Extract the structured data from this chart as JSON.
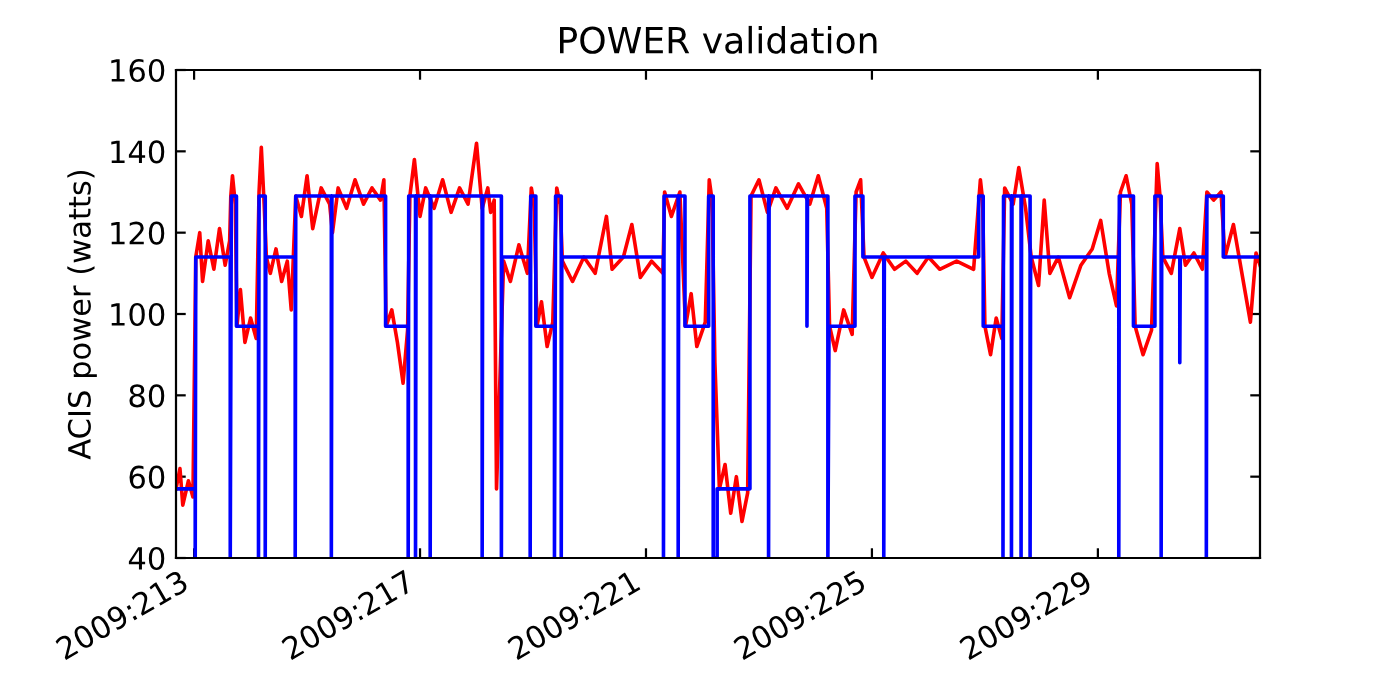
{
  "chart_data": {
    "type": "line",
    "title": "POWER validation",
    "ylabel": "ACIS power (watts)",
    "xlim": [
      "2009-07-31T16:19",
      "2009-08-19T20:53"
    ],
    "ylim": [
      40,
      160
    ],
    "xticks": [
      {
        "value": "2009-08-01",
        "label": "2009:213"
      },
      {
        "value": "2009-08-05",
        "label": "2009:217"
      },
      {
        "value": "2009-08-09",
        "label": "2009:221"
      },
      {
        "value": "2009-08-13",
        "label": "2009:225"
      },
      {
        "value": "2009-08-17",
        "label": "2009:229"
      }
    ],
    "yticks": [
      40,
      60,
      80,
      100,
      120,
      140,
      160
    ],
    "line_style": "solid",
    "marker": "none",
    "series": [
      {
        "color": "#ff0000",
        "x": [
          "2009-07-31T16:19",
          "2009-07-31T18:00",
          "2009-07-31T19:12",
          "2009-07-31T21:36",
          "2009-07-31T23:31",
          "2009-08-01T00:43",
          "2009-08-01T02:24",
          "2009-08-01T03:36",
          "2009-08-01T06:00",
          "2009-08-01T08:24",
          "2009-08-01T10:48",
          "2009-08-01T13:12",
          "2009-08-01T15:07",
          "2009-08-01T15:36",
          "2009-08-01T16:19",
          "2009-08-01T17:31",
          "2009-08-01T18:14",
          "2009-08-01T19:41",
          "2009-08-01T21:36",
          "2009-08-02T00:00",
          "2009-08-02T02:24",
          "2009-08-02T03:36",
          "2009-08-02T04:34",
          "2009-08-02T05:46",
          "2009-08-02T06:43",
          "2009-08-02T08:24",
          "2009-08-02T10:48",
          "2009-08-02T13:12",
          "2009-08-02T15:36",
          "2009-08-02T17:17",
          "2009-08-02T19:12",
          "2009-08-02T21:36",
          "2009-08-03T00:00",
          "2009-08-03T02:24",
          "2009-08-03T06:00",
          "2009-08-03T09:36",
          "2009-08-03T10:48",
          "2009-08-03T13:12",
          "2009-08-03T16:48",
          "2009-08-03T20:24",
          "2009-08-04T00:00",
          "2009-08-04T03:36",
          "2009-08-04T07:12",
          "2009-08-04T08:38",
          "2009-08-04T09:36",
          "2009-08-04T12:00",
          "2009-08-04T14:24",
          "2009-08-04T16:48",
          "2009-08-04T18:43",
          "2009-08-04T19:41",
          "2009-08-04T21:36",
          "2009-08-05T00:00",
          "2009-08-05T02:24",
          "2009-08-05T06:00",
          "2009-08-05T09:36",
          "2009-08-05T13:12",
          "2009-08-05T16:48",
          "2009-08-05T20:24",
          "2009-08-06T00:00",
          "2009-08-06T02:24",
          "2009-08-06T04:48",
          "2009-08-06T06:00",
          "2009-08-06T07:30",
          "2009-08-06T08:30",
          "2009-08-06T11:31",
          "2009-08-06T14:24",
          "2009-08-06T18:00",
          "2009-08-06T21:36",
          "2009-08-06T23:17",
          "2009-08-07T00:29",
          "2009-08-07T01:41",
          "2009-08-07T03:36",
          "2009-08-07T06:00",
          "2009-08-07T08:24",
          "2009-08-07T10:05",
          "2009-08-07T11:31",
          "2009-08-07T12:29",
          "2009-08-07T16:48",
          "2009-08-07T21:36",
          "2009-08-08T02:24",
          "2009-08-08T07:12",
          "2009-08-08T09:36",
          "2009-08-08T14:24",
          "2009-08-08T18:00",
          "2009-08-08T21:36",
          "2009-08-09T02:24",
          "2009-08-09T07:12",
          "2009-08-09T07:55",
          "2009-08-09T10:48",
          "2009-08-09T14:24",
          "2009-08-09T16:48",
          "2009-08-09T19:12",
          "2009-08-09T21:36",
          "2009-08-10T01:12",
          "2009-08-10T02:53",
          "2009-08-10T04:05",
          "2009-08-10T05:17",
          "2009-08-10T07:12",
          "2009-08-10T09:36",
          "2009-08-10T12:00",
          "2009-08-10T14:24",
          "2009-08-10T16:48",
          "2009-08-10T19:12",
          "2009-08-10T20:38",
          "2009-08-11T00:00",
          "2009-08-11T03:36",
          "2009-08-11T07:12",
          "2009-08-11T12:00",
          "2009-08-11T16:48",
          "2009-08-11T21:36",
          "2009-08-12T01:12",
          "2009-08-12T04:48",
          "2009-08-12T06:00",
          "2009-08-12T08:24",
          "2009-08-12T12:00",
          "2009-08-12T15:36",
          "2009-08-12T17:17",
          "2009-08-12T19:12",
          "2009-08-12T20:38",
          "2009-08-13T00:00",
          "2009-08-13T04:48",
          "2009-08-13T09:36",
          "2009-08-13T14:24",
          "2009-08-13T19:12",
          "2009-08-14T00:00",
          "2009-08-14T04:48",
          "2009-08-14T12:00",
          "2009-08-14T19:12",
          "2009-08-14T22:05",
          "2009-08-14T23:02",
          "2009-08-15T00:00",
          "2009-08-15T02:24",
          "2009-08-15T04:48",
          "2009-08-15T07:12",
          "2009-08-15T08:24",
          "2009-08-15T12:00",
          "2009-08-15T14:24",
          "2009-08-15T17:17",
          "2009-08-15T19:41",
          "2009-08-15T22:48",
          "2009-08-16T01:12",
          "2009-08-16T03:36",
          "2009-08-16T07:12",
          "2009-08-16T12:00",
          "2009-08-16T16:48",
          "2009-08-16T21:36",
          "2009-08-17T01:12",
          "2009-08-17T04:48",
          "2009-08-17T07:55",
          "2009-08-17T09:36",
          "2009-08-17T12:00",
          "2009-08-17T14:24",
          "2009-08-17T15:50",
          "2009-08-17T19:12",
          "2009-08-17T22:48",
          "2009-08-18T01:12",
          "2009-08-18T02:24",
          "2009-08-18T03:36",
          "2009-08-18T07:12",
          "2009-08-18T10:48",
          "2009-08-18T13:12",
          "2009-08-18T16:48",
          "2009-08-18T20:24",
          "2009-08-18T22:19",
          "2009-08-19T01:12",
          "2009-08-19T04:19",
          "2009-08-19T06:00",
          "2009-08-19T09:36",
          "2009-08-19T13:12",
          "2009-08-19T16:48",
          "2009-08-19T19:12",
          "2009-08-19T20:53"
        ],
        "values": [
          57,
          62,
          53,
          59,
          55,
          114,
          120,
          108,
          118,
          111,
          121,
          112,
          118,
          129,
          134,
          127,
          97,
          106,
          93,
          99,
          94,
          130,
          141,
          127,
          114,
          110,
          116,
          108,
          113,
          101,
          129,
          124,
          134,
          121,
          131,
          127,
          120,
          131,
          126,
          133,
          127,
          131,
          128,
          133,
          97,
          101,
          93,
          83,
          96,
          129,
          138,
          124,
          131,
          126,
          133,
          125,
          131,
          127,
          142,
          126,
          131,
          125,
          128,
          57,
          113,
          108,
          117,
          110,
          131,
          127,
          97,
          103,
          92,
          98,
          131,
          127,
          113,
          108,
          114,
          110,
          124,
          111,
          114,
          122,
          109,
          113,
          110,
          130,
          124,
          130,
          97,
          105,
          92,
          98,
          133,
          128,
          88,
          57,
          63,
          51,
          60,
          49,
          56,
          129,
          133,
          125,
          131,
          126,
          132,
          127,
          134,
          126,
          97,
          91,
          101,
          95,
          130,
          133,
          114,
          109,
          115,
          111,
          113,
          110,
          114,
          111,
          113,
          111,
          133,
          128,
          97,
          90,
          99,
          94,
          131,
          127,
          136,
          126,
          114,
          107,
          128,
          110,
          114,
          104,
          112,
          116,
          123,
          110,
          102,
          130,
          134,
          127,
          97,
          90,
          96,
          137,
          129,
          114,
          110,
          121,
          112,
          115,
          111,
          130,
          128,
          130,
          114,
          122,
          110,
          98,
          115,
          112
        ]
      },
      {
        "color": "#0000ff",
        "x": [
          "2009-07-31T16:19",
          "2009-08-01T00:29",
          "2009-08-01T00:29",
          "2009-08-01T00:43",
          "2009-08-01T15:22",
          "2009-08-01T15:22",
          "2009-08-01T15:50",
          "2009-08-01T18:00",
          "2009-08-01T18:00",
          "2009-08-02T03:22",
          "2009-08-02T03:22",
          "2009-08-02T03:36",
          "2009-08-02T06:14",
          "2009-08-02T06:14",
          "2009-08-02T06:29",
          "2009-08-02T18:58",
          "2009-08-02T18:58",
          "2009-08-02T19:12",
          "2009-08-03T10:19",
          "2009-08-03T10:19",
          "2009-08-03T10:34",
          "2009-08-04T09:22",
          "2009-08-04T09:22",
          "2009-08-04T18:58",
          "2009-08-04T18:58",
          "2009-08-04T19:12",
          "2009-08-04T22:05",
          "2009-08-04T22:05",
          "2009-08-04T22:19",
          "2009-08-05T04:19",
          "2009-08-05T04:19",
          "2009-08-05T04:34",
          "2009-08-06T02:24",
          "2009-08-06T02:24",
          "2009-08-06T02:38",
          "2009-08-06T10:34",
          "2009-08-06T10:34",
          "2009-08-06T10:48",
          "2009-08-06T22:48",
          "2009-08-06T22:48",
          "2009-08-06T23:02",
          "2009-08-07T01:12",
          "2009-08-07T01:12",
          "2009-08-07T09:07",
          "2009-08-07T09:07",
          "2009-08-07T09:36",
          "2009-08-07T12:00",
          "2009-08-07T12:00",
          "2009-08-07T12:14",
          "2009-08-09T07:26",
          "2009-08-09T07:26",
          "2009-08-09T07:41",
          "2009-08-09T13:41",
          "2009-08-09T13:41",
          "2009-08-09T13:55",
          "2009-08-09T16:34",
          "2009-08-09T16:34",
          "2009-08-10T02:38",
          "2009-08-10T02:38",
          "2009-08-10T04:34",
          "2009-08-10T04:34",
          "2009-08-10T06:14",
          "2009-08-10T06:14",
          "2009-08-10T20:10",
          "2009-08-10T20:10",
          "2009-08-11T04:05",
          "2009-08-11T04:05",
          "2009-08-11T04:19",
          "2009-08-11T20:24",
          "2009-08-11T20:24",
          "2009-08-11T20:38",
          "2009-08-12T05:17",
          "2009-08-12T05:17",
          "2009-08-12T05:46",
          "2009-08-12T16:48",
          "2009-08-12T16:48",
          "2009-08-12T20:10",
          "2009-08-12T20:10",
          "2009-08-13T05:02",
          "2009-08-13T05:02",
          "2009-08-13T05:17",
          "2009-08-14T21:22",
          "2009-08-14T21:22",
          "2009-08-14T23:17",
          "2009-08-14T23:17",
          "2009-08-15T07:41",
          "2009-08-15T07:41",
          "2009-08-15T07:55",
          "2009-08-15T11:17",
          "2009-08-15T11:17",
          "2009-08-15T11:31",
          "2009-08-15T15:22",
          "2009-08-15T15:22",
          "2009-08-15T15:36",
          "2009-08-15T19:12",
          "2009-08-15T19:12",
          "2009-08-15T19:26",
          "2009-08-17T08:53",
          "2009-08-17T08:53",
          "2009-08-17T09:07",
          "2009-08-17T15:07",
          "2009-08-17T15:07",
          "2009-08-18T00:14",
          "2009-08-18T00:14",
          "2009-08-18T02:53",
          "2009-08-18T02:53",
          "2009-08-18T03:07",
          "2009-08-18T10:48",
          "2009-08-18T10:48",
          "2009-08-18T11:02",
          "2009-08-18T22:05",
          "2009-08-18T22:05",
          "2009-08-18T22:19",
          "2009-08-19T05:17",
          "2009-08-19T05:17",
          "2009-08-19T20:53"
        ],
        "values": [
          57,
          57,
          40,
          114,
          114,
          40,
          129,
          129,
          97,
          97,
          40,
          129,
          129,
          40,
          114,
          114,
          40,
          129,
          129,
          40,
          129,
          129,
          97,
          97,
          40,
          129,
          129,
          40,
          129,
          129,
          40,
          129,
          129,
          40,
          129,
          129,
          40,
          114,
          114,
          40,
          129,
          129,
          97,
          97,
          40,
          129,
          129,
          40,
          114,
          114,
          40,
          129,
          129,
          40,
          129,
          129,
          97,
          97,
          129,
          129,
          40,
          40,
          57,
          57,
          129,
          129,
          40,
          129,
          129,
          97,
          129,
          129,
          40,
          97,
          97,
          129,
          129,
          114,
          114,
          40,
          114,
          114,
          129,
          129,
          97,
          97,
          40,
          129,
          129,
          40,
          129,
          129,
          40,
          129,
          129,
          40,
          114,
          114,
          40,
          129,
          129,
          97,
          97,
          129,
          129,
          40,
          114,
          114,
          88,
          114,
          114,
          40,
          129,
          129,
          114,
          114
        ]
      }
    ]
  }
}
